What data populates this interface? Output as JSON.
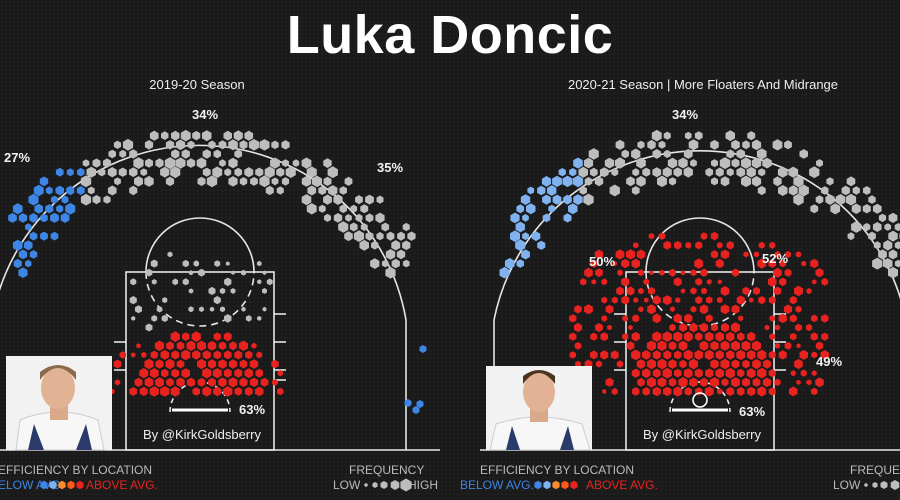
{
  "title": "Luka Doncic",
  "legend": {
    "efficiency_title": "EFFICIENCY BY LOCATION",
    "below": "BELOW AVG.",
    "above": "ABOVE AVG.",
    "frequency_title": "FREQUENCY",
    "low": "LOW",
    "high": "HIGH",
    "colors": [
      "#3d86e6",
      "#7fb2ef",
      "#ff8b2e",
      "#ff5a14",
      "#e8231f"
    ]
  },
  "chart_data": [
    {
      "type": "hexbin-shot-chart",
      "subtitle": "2019-20 Season",
      "credit": "By @KirkGoldsberry",
      "zone_labels": [
        {
          "zone": "left-corner-three",
          "value": "27%"
        },
        {
          "zone": "top-of-key-three",
          "value": "34%"
        },
        {
          "zone": "right-wing-three",
          "value": "35%"
        },
        {
          "zone": "restricted-area",
          "value": "63%"
        }
      ],
      "colors": {
        "below": "#3d86e6",
        "average": "#bdbdbd",
        "above": "#e8231f"
      }
    },
    {
      "type": "hexbin-shot-chart",
      "subtitle": "2020-21 Season | More Floaters And Midrange",
      "credit": "By @KirkGoldsberry",
      "zone_labels": [
        {
          "zone": "top-of-key-three",
          "value": "34%"
        },
        {
          "zone": "left-elbow",
          "value": "50%"
        },
        {
          "zone": "right-elbow",
          "value": "52%"
        },
        {
          "zone": "right-baseline-midrange",
          "value": "49%"
        },
        {
          "zone": "restricted-area",
          "value": "63%"
        }
      ],
      "colors": {
        "below": "#7fb2ef",
        "average": "#bdbdbd",
        "above": "#e8231f"
      }
    }
  ]
}
